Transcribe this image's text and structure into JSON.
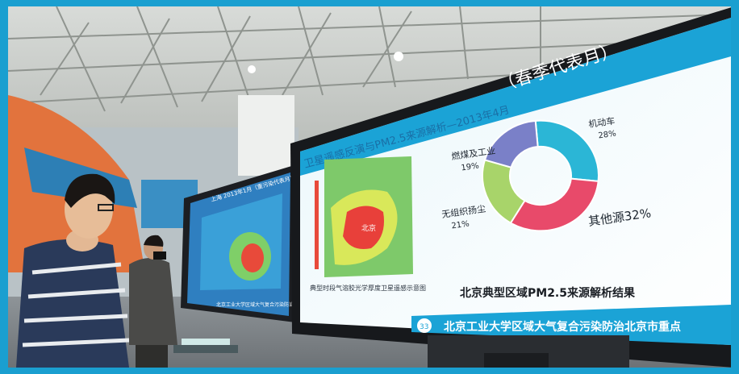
{
  "screen": {
    "title": "（春季代表月）",
    "subtitle": "卫星遥感反演与PM2.5来源解析—2013年4月",
    "map_caption": "典型时段气溶胶光学厚度卫星遥感示意图",
    "result_title": "北京典型区域PM2.5来源解析结果",
    "footer_badge": "33",
    "footer_text": "北京工业大学区域大气复合污染防治北京市重点",
    "map_label": "北京"
  },
  "chart_data": {
    "type": "pie",
    "title": "北京典型区域PM2.5来源解析结果",
    "categories": [
      "机动车",
      "其他源",
      "扬尘",
      "燃煤及工业"
    ],
    "values": [
      28,
      32,
      21,
      19
    ],
    "labels": [
      {
        "name": "机动车",
        "value": "28%"
      },
      {
        "name": "其他源",
        "value": "32%"
      },
      {
        "name": "无组织扬尘",
        "value": "21%"
      },
      {
        "name": "燃煤及工业",
        "value": "19%"
      }
    ],
    "colors": [
      "#2bb6d6",
      "#e84a6a",
      "#a8d46a",
      "#7a80c8"
    ]
  },
  "left_screen": {
    "header": "上海 2013年1月（重污染代表月）",
    "footer": "北京工业大学区域大气复合污染防治"
  }
}
